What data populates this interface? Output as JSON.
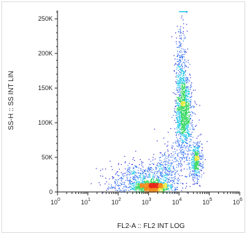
{
  "chart_data": {
    "type": "scatter",
    "plot_kind": "flow-cytometry density dot plot",
    "xlabel": "FL2-A :: FL2 INT LOG",
    "ylabel": "SS-H :: SS INT LIN",
    "x_scale": "log",
    "y_scale": "linear",
    "xlim": [
      1,
      1000000
    ],
    "ylim": [
      0,
      262144
    ],
    "x_tick_labels": [
      {
        "base": "10",
        "exp": "0",
        "value": 1
      },
      {
        "base": "10",
        "exp": "1",
        "value": 10
      },
      {
        "base": "10",
        "exp": "2",
        "value": 100
      },
      {
        "base": "10",
        "exp": "3",
        "value": 1000
      },
      {
        "base": "10",
        "exp": "4",
        "value": 10000
      },
      {
        "base": "10",
        "exp": "5",
        "value": 100000
      },
      {
        "base": "10",
        "exp": "6",
        "value": 1000000
      }
    ],
    "y_ticks": [
      {
        "label": "0",
        "value": 0
      },
      {
        "label": "50K",
        "value": 50000
      },
      {
        "label": "100K",
        "value": 100000
      },
      {
        "label": "150K",
        "value": 150000
      },
      {
        "label": "200K",
        "value": 200000
      },
      {
        "label": "250K",
        "value": 250000
      }
    ],
    "density_colors": [
      "#1c1cd6",
      "#2f6cf0",
      "#23c8e8",
      "#37d860",
      "#e8e830",
      "#f08a1a",
      "#e8281a"
    ],
    "populations": [
      {
        "x_log": 3.1,
        "y": 8000,
        "sx": 0.28,
        "sy": 4000,
        "weight": 0.3
      },
      {
        "x_log": 4.15,
        "y": 115000,
        "sx": 0.13,
        "sy": 28000,
        "weight": 0.33
      },
      {
        "x_log": 4.55,
        "y": 45000,
        "sx": 0.1,
        "sy": 13000,
        "weight": 0.12
      },
      {
        "x_log": 4.05,
        "y": 175000,
        "sx": 0.1,
        "sy": 30000,
        "weight": 0.08
      },
      {
        "x_log": 2.6,
        "y": 22000,
        "sx": 0.45,
        "sy": 10000,
        "weight": 0.09
      },
      {
        "x_log": 3.6,
        "y": 30000,
        "sx": 0.25,
        "sy": 15000,
        "weight": 0.08
      }
    ]
  }
}
